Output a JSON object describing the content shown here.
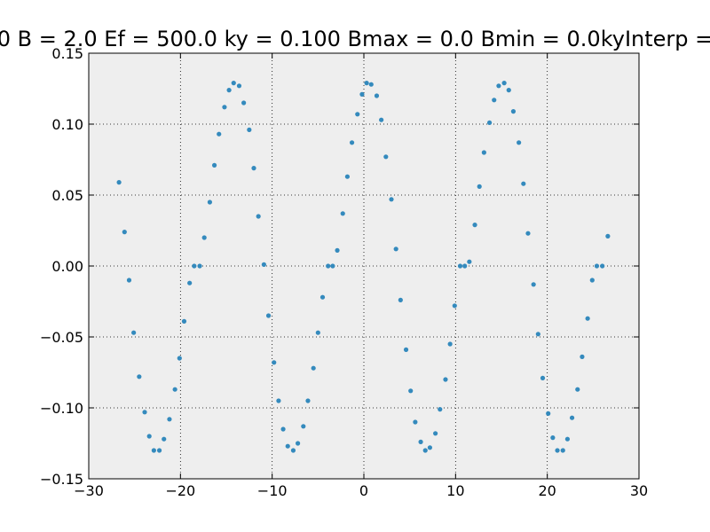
{
  "chart_data": {
    "type": "scatter",
    "title": "0 B = 2.0 Ef = 500.0 ky = 0.100 Bmax = 0.0 Bmin = 0.0kyInterp =",
    "xlabel": "",
    "ylabel": "",
    "xlim": [
      -30,
      30
    ],
    "ylim": [
      -0.15,
      0.15
    ],
    "xticks": [
      -30,
      -20,
      -10,
      0,
      10,
      20,
      30
    ],
    "xtick_labels": [
      "−30",
      "−20",
      "−10",
      "0",
      "10",
      "20",
      "30"
    ],
    "yticks": [
      -0.15,
      -0.1,
      -0.05,
      0.0,
      0.05,
      0.1,
      0.15
    ],
    "ytick_labels": [
      "−0.15",
      "−0.10",
      "−0.05",
      "0.00",
      "0.05",
      "0.10",
      "0.15"
    ],
    "grid": true,
    "colors": {
      "point": "#348abd",
      "plot_bg": "#eeeeee",
      "grid": "#000000"
    },
    "series": [
      {
        "x": [
          -26.7,
          -26.1,
          -25.6,
          -25.1,
          -24.5,
          -23.9,
          -23.4,
          -22.9,
          -22.3,
          -21.8,
          -21.2,
          -20.6,
          -20.1,
          -19.6,
          -19.0,
          -18.5,
          -17.9,
          -17.4,
          -16.8,
          -16.3,
          -15.8,
          -15.2,
          -14.7,
          -14.2,
          -13.6,
          -13.1,
          -12.5,
          -12.0,
          -11.5,
          -10.9,
          -10.4,
          -9.8,
          -9.3,
          -8.8,
          -8.3,
          -7.7,
          -7.2,
          -6.6,
          -6.1,
          -5.5,
          -5.0,
          -4.5,
          -3.9,
          -3.4,
          -2.9,
          -2.3,
          -1.8,
          -1.3,
          -0.7,
          -0.2,
          0.3,
          0.8,
          1.4,
          1.9,
          2.4,
          3.0,
          3.5,
          4.0,
          4.6,
          5.1,
          5.6,
          6.2,
          6.7,
          7.2,
          7.8,
          8.3,
          8.9,
          9.4,
          9.9,
          10.5,
          11.0,
          11.5,
          12.1,
          12.6,
          13.1,
          13.7,
          14.2,
          14.7,
          15.3,
          15.8,
          16.3,
          16.9,
          17.4,
          17.9,
          18.5,
          19.0,
          19.5,
          20.1,
          20.6,
          21.1,
          21.7,
          22.2,
          22.7,
          23.3,
          23.8,
          24.4,
          24.9,
          25.4,
          26.0,
          26.6
        ],
        "y": [
          0.059,
          0.024,
          -0.01,
          -0.047,
          -0.078,
          -0.103,
          -0.12,
          -0.13,
          -0.13,
          -0.122,
          -0.108,
          -0.087,
          -0.065,
          -0.039,
          -0.012,
          0.0,
          0.0,
          0.02,
          0.045,
          0.071,
          0.093,
          0.112,
          0.124,
          0.129,
          0.127,
          0.115,
          0.096,
          0.069,
          0.035,
          0.001,
          -0.035,
          -0.068,
          -0.095,
          -0.115,
          -0.127,
          -0.13,
          -0.125,
          -0.113,
          -0.095,
          -0.072,
          -0.047,
          -0.022,
          0.0,
          0.0,
          0.011,
          0.037,
          0.063,
          0.087,
          0.107,
          0.121,
          0.129,
          0.128,
          0.12,
          0.103,
          0.077,
          0.047,
          0.012,
          -0.024,
          -0.059,
          -0.088,
          -0.11,
          -0.124,
          -0.13,
          -0.128,
          -0.118,
          -0.101,
          -0.08,
          -0.055,
          -0.028,
          0.0,
          0.0,
          0.003,
          0.029,
          0.056,
          0.08,
          0.101,
          0.117,
          0.127,
          0.129,
          0.124,
          0.109,
          0.087,
          0.058,
          0.023,
          -0.013,
          -0.048,
          -0.079,
          -0.104,
          -0.121,
          -0.13,
          -0.13,
          -0.122,
          -0.107,
          -0.087,
          -0.064,
          -0.037,
          -0.01,
          0.0,
          0.0,
          0.021
        ]
      }
    ]
  }
}
